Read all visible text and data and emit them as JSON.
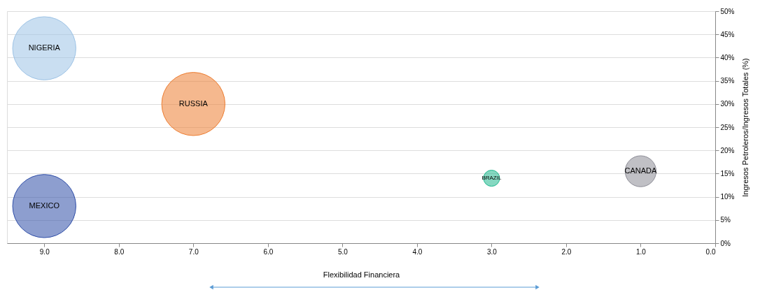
{
  "chart_data": {
    "type": "bubble",
    "xlabel": "Flexibilidad Financiera",
    "ylabel": "Ingresos Petroleros/Ingresos Totales (%)",
    "xlim": [
      9.5,
      0
    ],
    "xticks": [
      {
        "value": 9,
        "label": "9.0"
      },
      {
        "value": 8,
        "label": "8.0"
      },
      {
        "value": 7,
        "label": "7.0"
      },
      {
        "value": 6,
        "label": "6.0"
      },
      {
        "value": 5,
        "label": "5.0"
      },
      {
        "value": 4,
        "label": "4.0"
      },
      {
        "value": 3,
        "label": "3.0"
      },
      {
        "value": 2,
        "label": "2.0"
      },
      {
        "value": 1,
        "label": "1.0"
      },
      {
        "value": 0,
        "label": "0.0"
      }
    ],
    "ylim": [
      0,
      50
    ],
    "yticks": [
      {
        "value": 0,
        "label": "0%"
      },
      {
        "value": 5,
        "label": "5%"
      },
      {
        "value": 10,
        "label": "10%"
      },
      {
        "value": 15,
        "label": "15%"
      },
      {
        "value": 20,
        "label": "20%"
      },
      {
        "value": 25,
        "label": "25%"
      },
      {
        "value": 30,
        "label": "30%"
      },
      {
        "value": 35,
        "label": "35%"
      },
      {
        "value": 40,
        "label": "40%"
      },
      {
        "value": 45,
        "label": "45%"
      },
      {
        "value": 50,
        "label": "50%"
      }
    ],
    "grid": "y",
    "series": [
      {
        "name": "NIGERIA",
        "color": "#9dc3e6",
        "x": [
          9.0
        ],
        "values": [
          42
        ],
        "sizes": [
          1
        ]
      },
      {
        "name": "RUSSIA",
        "color": "#ed7d31",
        "x": [
          7.0
        ],
        "values": [
          30
        ],
        "sizes": [
          1
        ]
      },
      {
        "name": "MEXICO",
        "color": "#2f4ea8",
        "x": [
          9.0
        ],
        "values": [
          8
        ],
        "sizes": [
          1
        ]
      },
      {
        "name": "BRAZIL",
        "color": "#21b88e",
        "x": [
          3.0
        ],
        "values": [
          14
        ],
        "sizes": [
          0.065
        ]
      },
      {
        "name": "CANADA",
        "color": "#8c8c96",
        "x": [
          1.0
        ],
        "values": [
          15.5
        ],
        "sizes": [
          0.24
        ]
      }
    ]
  }
}
